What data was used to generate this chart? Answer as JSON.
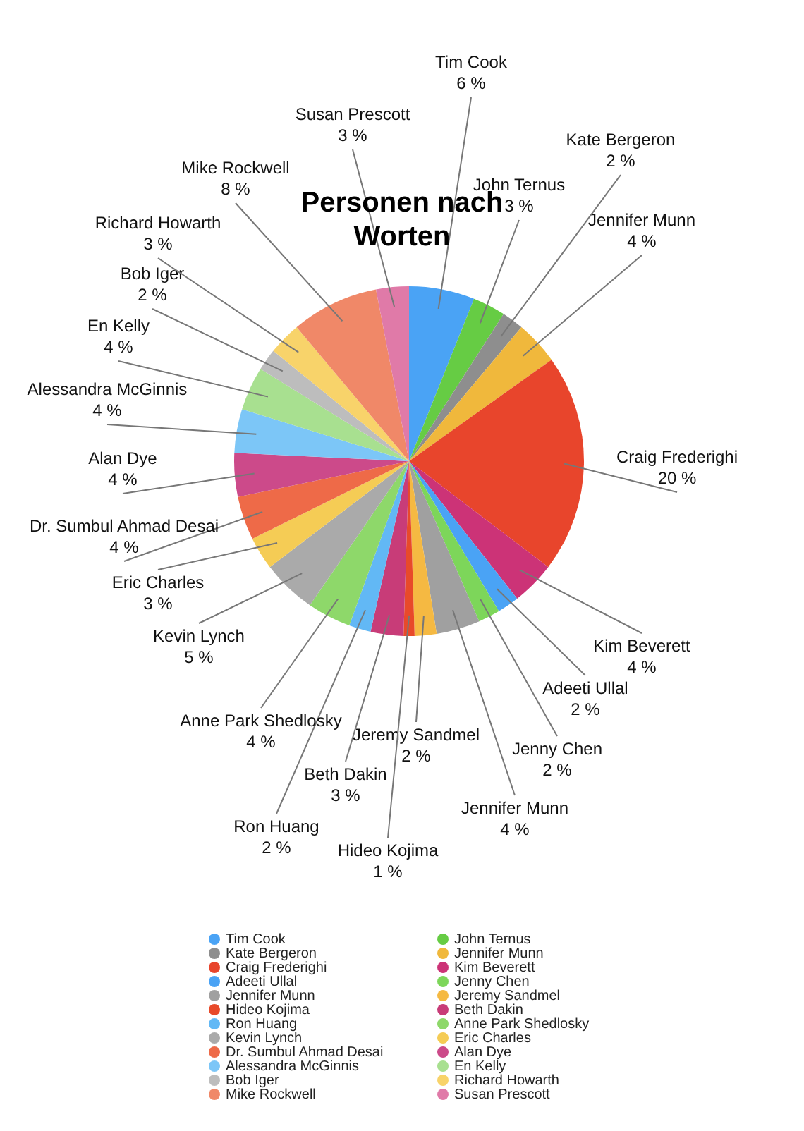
{
  "chart_data": {
    "type": "pie",
    "title": "Personen nach Worten",
    "categories": [
      "Tim Cook",
      "John Ternus",
      "Kate Bergeron",
      "Jennifer Munn",
      "Craig Frederighi",
      "Kim Beverett",
      "Adeeti Ullal",
      "Jenny Chen",
      "Jennifer Munn",
      "Jeremy Sandmel",
      "Hideo Kojima",
      "Beth Dakin",
      "Ron Huang",
      "Anne Park Shedlosky",
      "Kevin Lynch",
      "Eric Charles",
      "Dr. Sumbul Ahmad Desai",
      "Alan Dye",
      "Alessandra McGinnis",
      "En Kelly",
      "Bob Iger",
      "Richard Howarth",
      "Mike Rockwell",
      "Susan Prescott"
    ],
    "values": [
      6,
      3,
      2,
      4,
      20,
      4,
      2,
      2,
      4,
      2,
      1,
      3,
      2,
      4,
      5,
      3,
      4,
      4,
      4,
      4,
      2,
      3,
      8,
      3
    ],
    "value_labels": [
      "6 %",
      "3 %",
      "2 %",
      "4 %",
      "20 %",
      "4 %",
      "2 %",
      "2 %",
      "4 %",
      "2 %",
      "1 %",
      "3 %",
      "2 %",
      "4 %",
      "5 %",
      "3 %",
      "4 %",
      "4 %",
      "4 %",
      "4 %",
      "2 %",
      "3 %",
      "8 %",
      "3 %"
    ],
    "colors": [
      "#4aa3f5",
      "#66cc44",
      "#8e8e8e",
      "#f0b83c",
      "#e8452c",
      "#cc3377",
      "#4aa3f5",
      "#7dd65a",
      "#a0a0a0",
      "#f5b942",
      "#e84a2a",
      "#c83c78",
      "#62b8f5",
      "#8ed86a",
      "#aaaaaa",
      "#f5cc55",
      "#ee6a48",
      "#cc4a8a",
      "#7cc6f7",
      "#a8e090",
      "#bdbdbd",
      "#f8d36a",
      "#f08868",
      "#e07aa8"
    ],
    "legend": "bottom"
  }
}
